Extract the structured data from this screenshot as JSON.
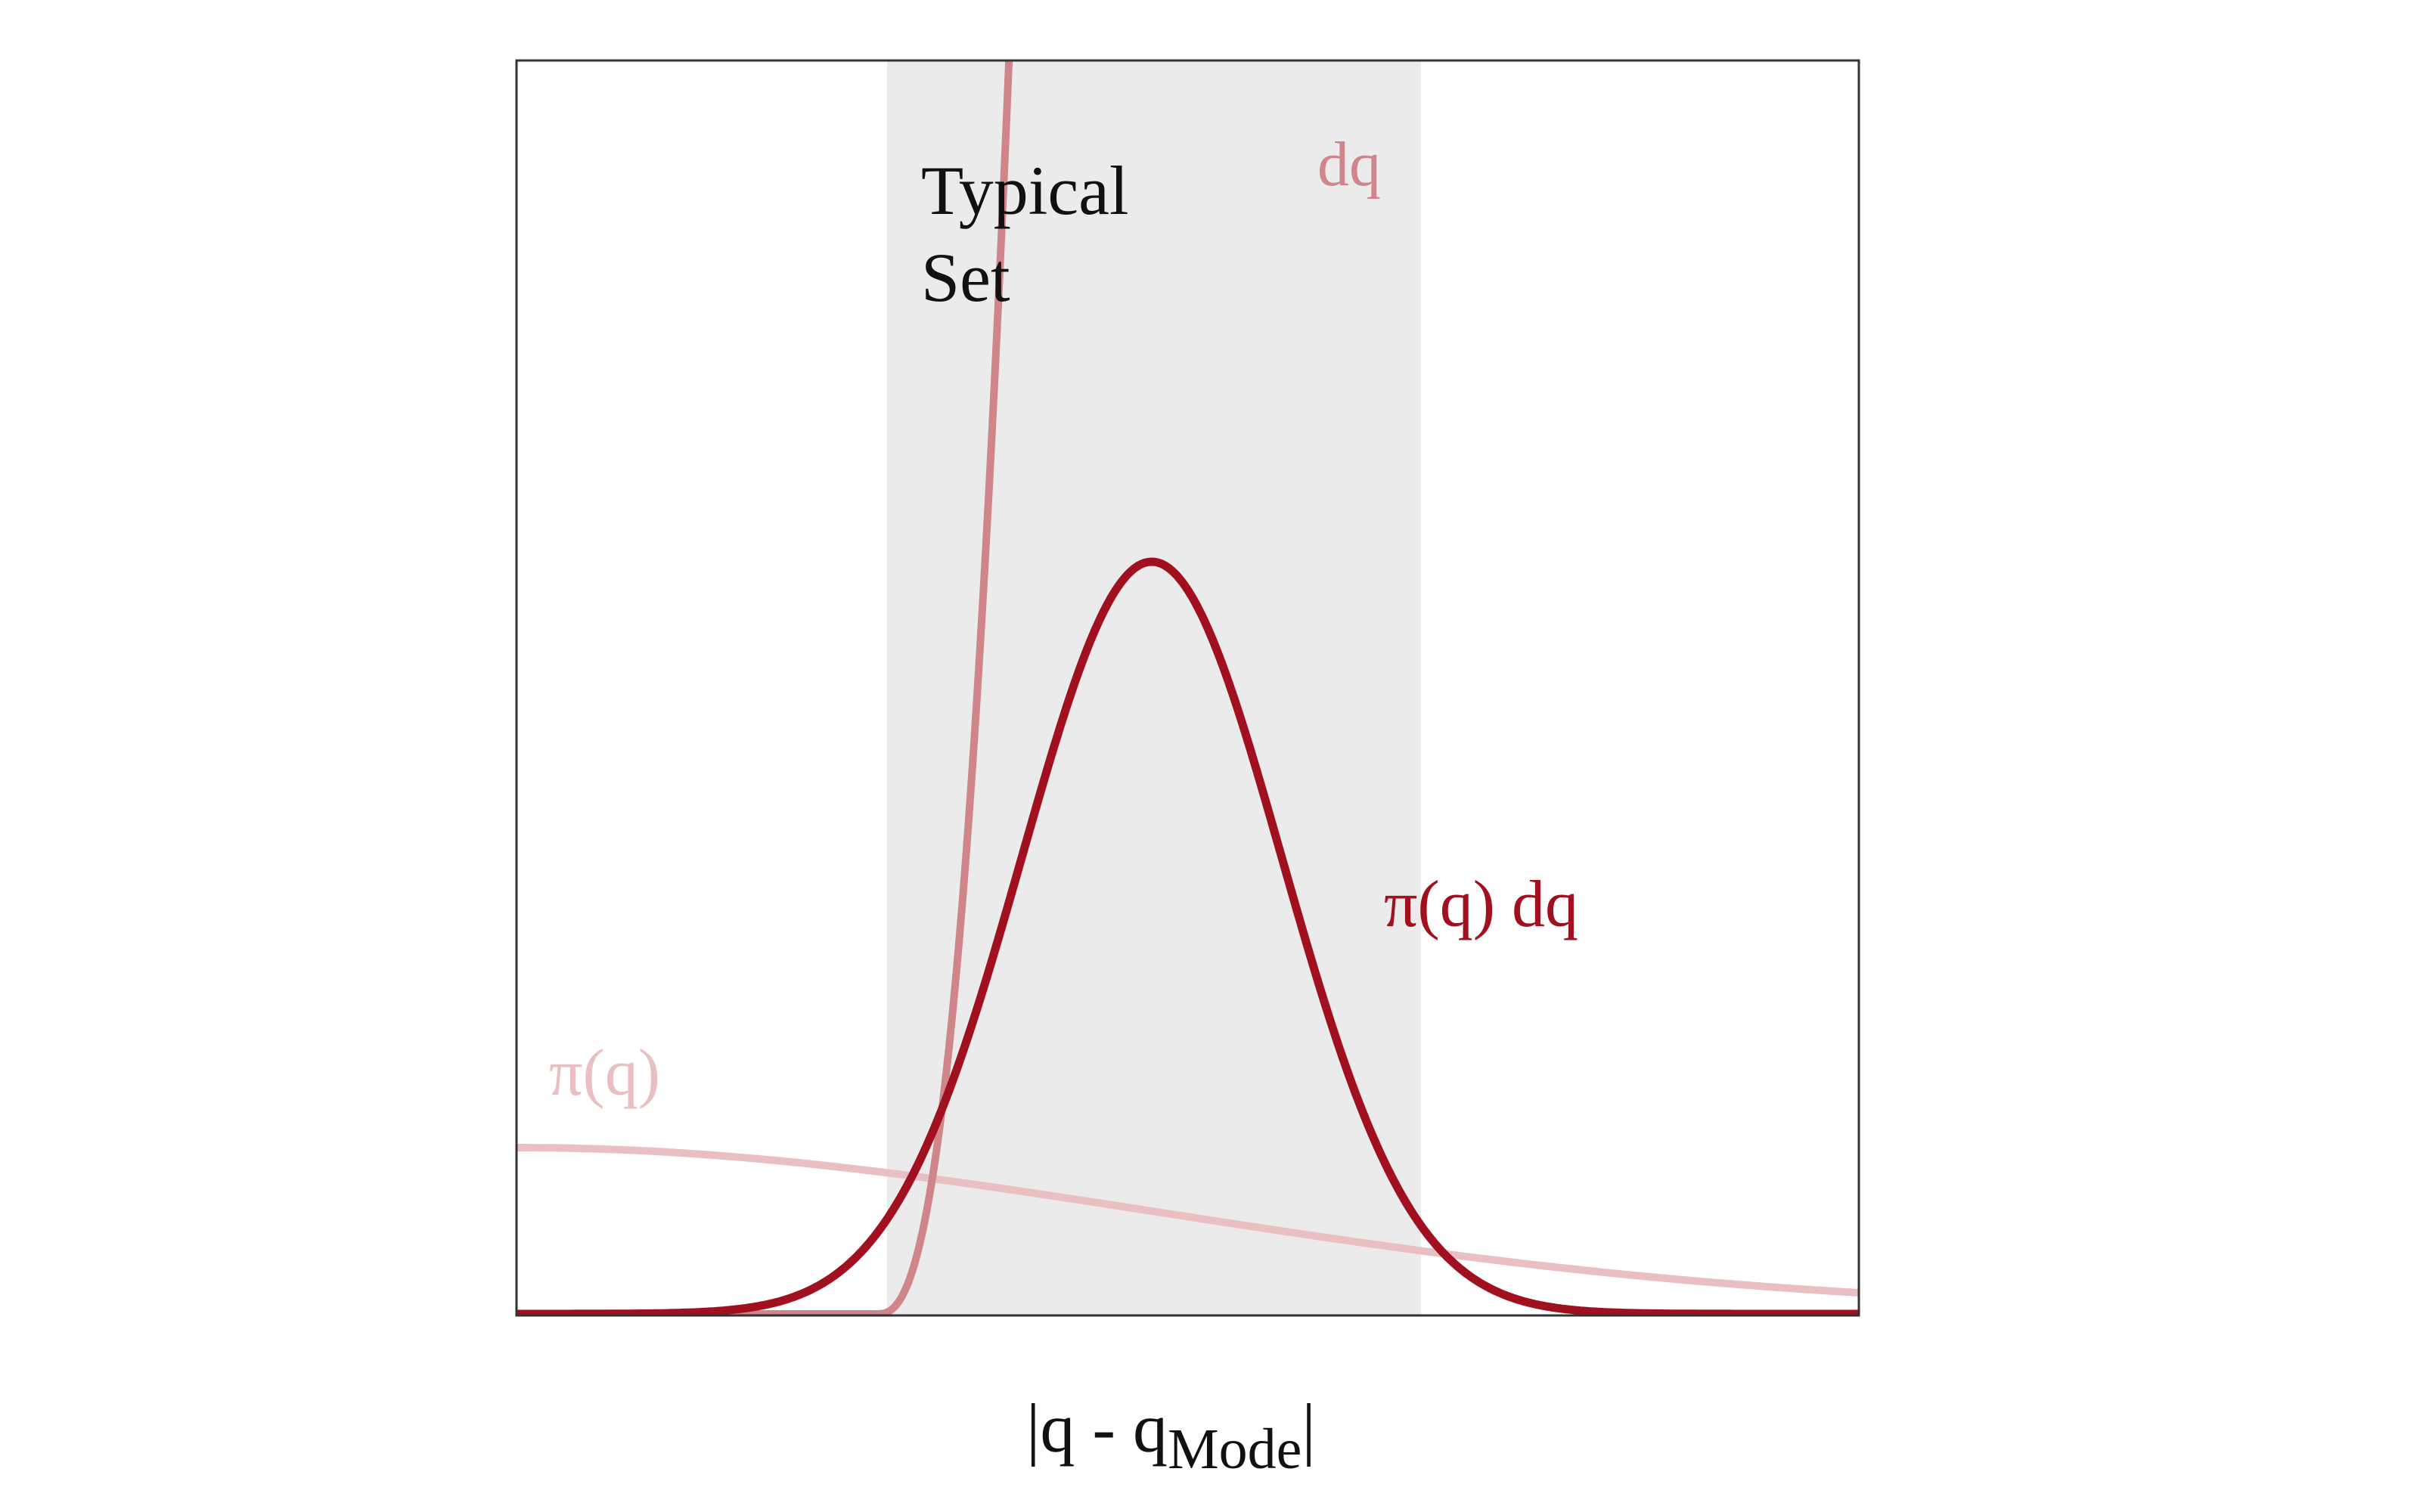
{
  "labels": {
    "typical_set_line1": "Typical",
    "typical_set_line2": "Set",
    "dq": "dq",
    "density_times_volume": "π(q) dq",
    "density": "π(q)",
    "x_axis_main": "|q - q",
    "x_axis_subscript": "Mode",
    "x_axis_end": "|"
  },
  "colors": {
    "frame": "#333333",
    "typical_set_band": "#ebebec",
    "typical_set_text": "#111111",
    "volume_curve": "#cf8589",
    "product_curve": "#a0101f",
    "density_curve": "#eabfc1",
    "axis_label": "#111111"
  }
}
